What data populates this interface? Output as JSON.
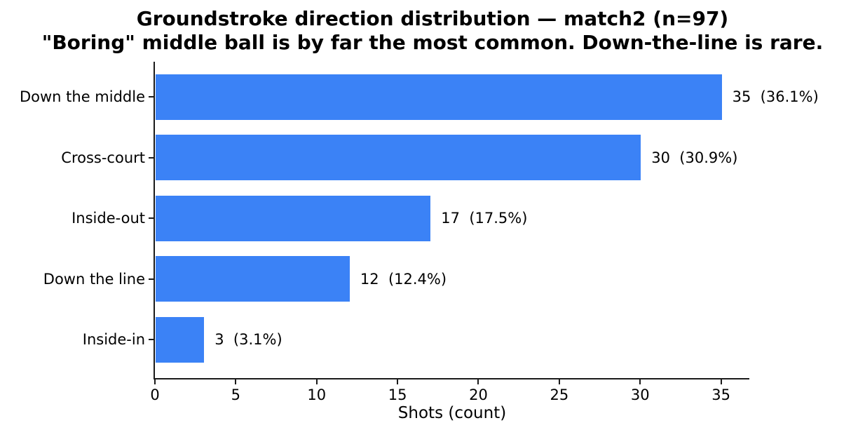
{
  "chart_data": {
    "type": "bar",
    "orientation": "horizontal",
    "title": "Groundstroke direction distribution — match2 (n=97)",
    "subtitle": "\"Boring\" middle ball is by far the most common. Down-the-line is rare.",
    "categories": [
      "Down the middle",
      "Cross-court",
      "Inside-out",
      "Down the line",
      "Inside-in"
    ],
    "values": [
      35,
      30,
      17,
      12,
      3
    ],
    "percentages": [
      36.1,
      30.9,
      17.5,
      12.4,
      3.1
    ],
    "value_labels": [
      "35  (36.1%)",
      "30  (30.9%)",
      "17  (17.5%)",
      "12  (12.4%)",
      "3  (3.1%)"
    ],
    "n_total": 97,
    "xlabel": "Shots (count)",
    "xticks": [
      0,
      5,
      10,
      15,
      20,
      25,
      30,
      35
    ],
    "xlim": [
      0,
      36.75
    ],
    "grid": false,
    "legend": "none",
    "bar_color": "#3b82f6",
    "axis_color": "#1a1a1a",
    "text_color": "#000000",
    "background_color": "#ffffff"
  }
}
